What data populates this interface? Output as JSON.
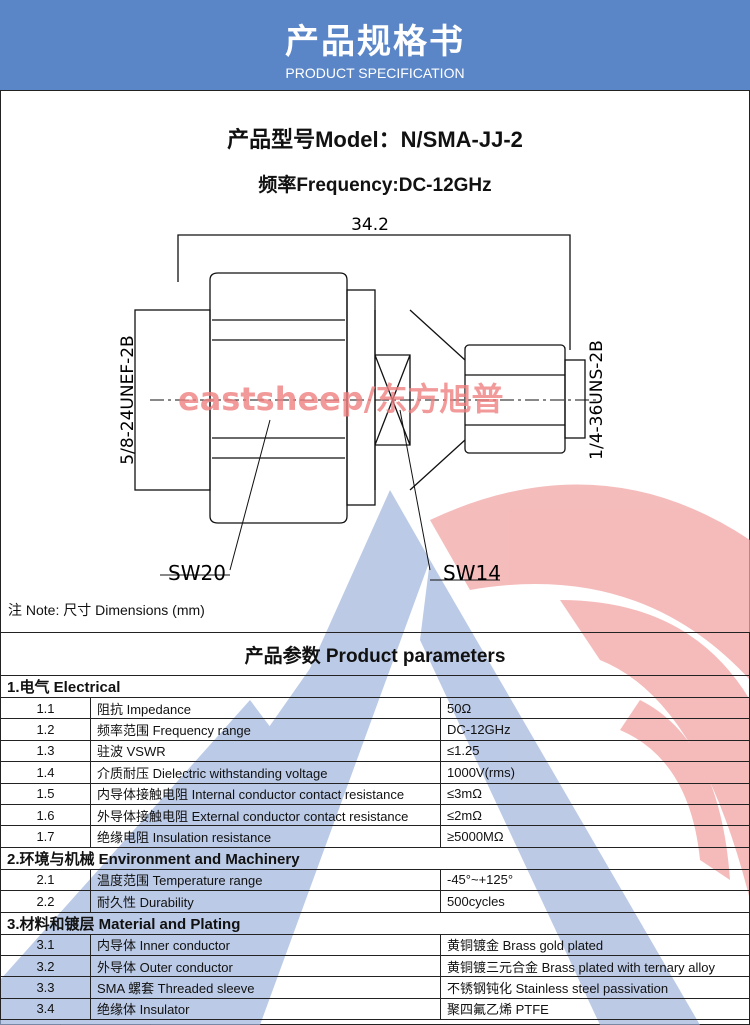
{
  "header": {
    "title": "产品规格书",
    "subtitle": "PRODUCT SPECIFICATION"
  },
  "model": "产品型号Model：N/SMA-JJ-2",
  "frequency": "频率Frequency:DC-12GHz",
  "drawing": {
    "length": "34.2",
    "left_thread": "5/8-24UNEF-2B",
    "right_thread": "1/4-36UNS-2B",
    "wrench_left": "SW20",
    "wrench_right": "SW14",
    "watermark": "eastsheep/东方旭普"
  },
  "note": "注 Note:  尺寸 Dimensions (mm)",
  "params": {
    "title": "产品参数 Product parameters",
    "sections": [
      {
        "title": "1.电气 Electrical",
        "rows": [
          [
            "1.1",
            "阻抗 Impedance",
            "50Ω"
          ],
          [
            "1.2",
            "频率范围 Frequency range",
            "DC-12GHz"
          ],
          [
            "1.3",
            "驻波 VSWR",
            "≤1.25"
          ],
          [
            "1.4",
            "介质耐压 Dielectric withstanding voltage",
            "1000V(rms)"
          ],
          [
            "1.5",
            "内导体接触电阻 Internal conductor contact resistance",
            "≤3mΩ"
          ],
          [
            "1.6",
            "外导体接触电阻 External conductor contact resistance",
            "≤2mΩ"
          ],
          [
            "1.7",
            "绝缘电阻  Insulation resistance",
            "≥5000MΩ"
          ]
        ]
      },
      {
        "title": "2.环境与机械 Environment and Machinery",
        "rows": [
          [
            "2.1",
            "温度范围 Temperature range",
            "-45°~+125°"
          ],
          [
            "2.2",
            "耐久性 Durability",
            "500cycles"
          ]
        ]
      },
      {
        "title": "3.材料和镀层 Material and Plating",
        "rows": [
          [
            "3.1",
            "内导体 Inner conductor",
            "黄铜镀金 Brass gold plated"
          ],
          [
            "3.2",
            "外导体 Outer conductor",
            "黄铜镀三元合金 Brass plated with ternary alloy"
          ],
          [
            "3.3",
            "SMA 螺套 Threaded sleeve",
            "不锈钢钝化 Stainless steel passivation"
          ],
          [
            "3.4",
            "绝缘体 Insulator",
            "聚四氟乙烯 PTFE"
          ]
        ]
      }
    ]
  },
  "colors": {
    "header": "#5a86c8",
    "watermark_blue": "#9fb4dc",
    "watermark_red": "#f2a5a5"
  }
}
